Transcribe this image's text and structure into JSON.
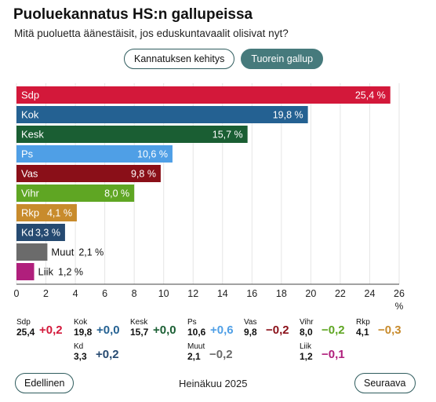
{
  "header": {
    "title": "Puoluekannatus HS:n gallupeissa",
    "subtitle": "Mitä puoluetta äänestäisit, jos eduskuntavaalit olisivat nyt?"
  },
  "tabs": [
    {
      "label": "Kannatuksen kehitys",
      "active": false
    },
    {
      "label": "Tuorein gallup",
      "active": true
    }
  ],
  "chart_data": {
    "type": "bar",
    "orientation": "horizontal",
    "categories": [
      "Sdp",
      "Kok",
      "Kesk",
      "Ps",
      "Vas",
      "Vihr",
      "Rkp",
      "Kd",
      "Muut",
      "Liik"
    ],
    "values": [
      25.4,
      19.8,
      15.7,
      10.6,
      9.8,
      8.0,
      4.1,
      3.3,
      2.1,
      1.2
    ],
    "value_labels": [
      "25,4 %",
      "19,8 %",
      "15,7 %",
      "10,6 %",
      "9,8 %",
      "8,0 %",
      "4,1 %",
      "3,3 %",
      "2,1 %",
      "1,2 %"
    ],
    "colors": [
      "#d3183a",
      "#246192",
      "#1a5e33",
      "#4f9fe6",
      "#8a0f18",
      "#5fa623",
      "#c88b2c",
      "#264a71",
      "#6b6b6b",
      "#b01f7c"
    ],
    "xlim": [
      0,
      26
    ],
    "xticks": [
      0,
      2,
      4,
      6,
      8,
      10,
      12,
      14,
      16,
      18,
      20,
      22,
      24,
      26
    ],
    "xlabel": "%",
    "grid": true
  },
  "changes": [
    {
      "party": "Sdp",
      "value": "25,4",
      "delta": "+0,2",
      "color": "#d3183a"
    },
    {
      "party": "Kok",
      "value": "19,8",
      "delta": "+0,0",
      "color": "#246192"
    },
    {
      "party": "Kesk",
      "value": "15,7",
      "delta": "+0,0",
      "color": "#1a5e33"
    },
    {
      "party": "Ps",
      "value": "10,6",
      "delta": "+0,6",
      "color": "#4f9fe6"
    },
    {
      "party": "Vas",
      "value": "9,8",
      "delta": "−0,2",
      "color": "#8a0f18"
    },
    {
      "party": "Vihr",
      "value": "8,0",
      "delta": "−0,2",
      "color": "#5fa623"
    },
    {
      "party": "Rkp",
      "value": "4,1",
      "delta": "−0,3",
      "color": "#c88b2c"
    },
    {
      "party": "Kd",
      "value": "3,3",
      "delta": "+0,2",
      "color": "#264a71"
    },
    {
      "party": "Muut",
      "value": "2,1",
      "delta": "−0,2",
      "color": "#6b6b6b"
    },
    {
      "party": "Liik",
      "value": "1,2",
      "delta": "−0,1",
      "color": "#b01f7c"
    }
  ],
  "footer": {
    "prev_label": "Edellinen",
    "period": "Heinäkuu 2025",
    "next_label": "Seuraava"
  }
}
